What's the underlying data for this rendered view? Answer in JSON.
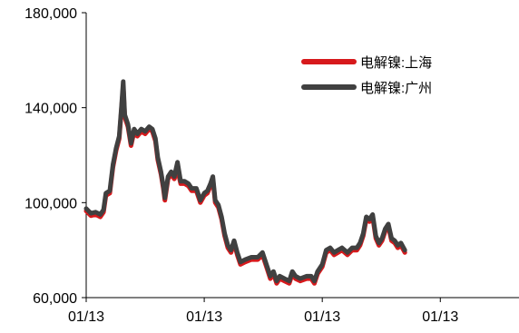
{
  "chart_data": {
    "type": "line",
    "xlabel": "",
    "ylabel": "",
    "ylim": [
      60000,
      180000
    ],
    "yticks": [
      60000,
      100000,
      140000,
      180000
    ],
    "ytick_labels": [
      "60,000",
      "100,000",
      "140,000",
      "180,000"
    ],
    "xlim": [
      0,
      5.5
    ],
    "xtick_positions": [
      0,
      1.5,
      3,
      4.5
    ],
    "xtick_labels": [
      "01/13",
      "01/13",
      "01/13",
      "01/13"
    ],
    "grid": false,
    "legend_position": "top-right",
    "series": [
      {
        "name": "电解镍:上海",
        "color": "#d7191c",
        "points": [
          [
            0.0,
            96500
          ],
          [
            0.06,
            94500
          ],
          [
            0.12,
            95000
          ],
          [
            0.18,
            94000
          ],
          [
            0.22,
            96000
          ],
          [
            0.25,
            103000
          ],
          [
            0.3,
            104000
          ],
          [
            0.34,
            115000
          ],
          [
            0.38,
            122000
          ],
          [
            0.42,
            127000
          ],
          [
            0.45,
            140000
          ],
          [
            0.47,
            149000
          ],
          [
            0.49,
            136000
          ],
          [
            0.53,
            132000
          ],
          [
            0.57,
            124000
          ],
          [
            0.61,
            130000
          ],
          [
            0.65,
            128000
          ],
          [
            0.7,
            130000
          ],
          [
            0.75,
            129000
          ],
          [
            0.8,
            131000
          ],
          [
            0.84,
            130000
          ],
          [
            0.88,
            126000
          ],
          [
            0.91,
            118000
          ],
          [
            0.95,
            112000
          ],
          [
            0.98,
            106000
          ],
          [
            1.0,
            101000
          ],
          [
            1.04,
            110000
          ],
          [
            1.08,
            112000
          ],
          [
            1.12,
            110000
          ],
          [
            1.16,
            114000
          ],
          [
            1.2,
            108000
          ],
          [
            1.25,
            108000
          ],
          [
            1.3,
            107000
          ],
          [
            1.34,
            105000
          ],
          [
            1.4,
            105000
          ],
          [
            1.45,
            100000
          ],
          [
            1.5,
            103000
          ],
          [
            1.54,
            104000
          ],
          [
            1.58,
            107000
          ],
          [
            1.61,
            110000
          ],
          [
            1.64,
            100000
          ],
          [
            1.68,
            98000
          ],
          [
            1.72,
            93000
          ],
          [
            1.76,
            86000
          ],
          [
            1.8,
            81000
          ],
          [
            1.84,
            79000
          ],
          [
            1.88,
            83000
          ],
          [
            1.92,
            78000
          ],
          [
            1.96,
            74000
          ],
          [
            2.02,
            75000
          ],
          [
            2.1,
            76000
          ],
          [
            2.18,
            76000
          ],
          [
            2.24,
            78000
          ],
          [
            2.3,
            72000
          ],
          [
            2.34,
            68000
          ],
          [
            2.38,
            70000
          ],
          [
            2.42,
            66000
          ],
          [
            2.46,
            68000
          ],
          [
            2.52,
            67000
          ],
          [
            2.58,
            66000
          ],
          [
            2.62,
            70000
          ],
          [
            2.66,
            68000
          ],
          [
            2.72,
            67000
          ],
          [
            2.8,
            68000
          ],
          [
            2.86,
            68000
          ],
          [
            2.9,
            66000
          ],
          [
            2.94,
            70000
          ],
          [
            3.0,
            73000
          ],
          [
            3.05,
            79000
          ],
          [
            3.1,
            80000
          ],
          [
            3.15,
            78000
          ],
          [
            3.2,
            79000
          ],
          [
            3.25,
            80000
          ],
          [
            3.32,
            78000
          ],
          [
            3.38,
            80000
          ],
          [
            3.44,
            80000
          ],
          [
            3.48,
            82000
          ],
          [
            3.52,
            86000
          ],
          [
            3.56,
            93000
          ],
          [
            3.6,
            92000
          ],
          [
            3.64,
            94000
          ],
          [
            3.68,
            85000
          ],
          [
            3.72,
            82000
          ],
          [
            3.76,
            84000
          ],
          [
            3.8,
            88000
          ],
          [
            3.84,
            90000
          ],
          [
            3.88,
            84000
          ],
          [
            3.92,
            83000
          ],
          [
            3.96,
            81000
          ],
          [
            4.0,
            82000
          ],
          [
            4.05,
            79000
          ]
        ]
      },
      {
        "name": "电解镍:广州",
        "color": "#404040",
        "points": [
          [
            0.0,
            97500
          ],
          [
            0.06,
            95500
          ],
          [
            0.12,
            96000
          ],
          [
            0.18,
            95000
          ],
          [
            0.22,
            97000
          ],
          [
            0.25,
            104000
          ],
          [
            0.3,
            105000
          ],
          [
            0.34,
            116000
          ],
          [
            0.38,
            123000
          ],
          [
            0.42,
            128000
          ],
          [
            0.45,
            141000
          ],
          [
            0.47,
            151000
          ],
          [
            0.49,
            137000
          ],
          [
            0.53,
            133000
          ],
          [
            0.57,
            125000
          ],
          [
            0.61,
            131000
          ],
          [
            0.65,
            129000
          ],
          [
            0.7,
            131000
          ],
          [
            0.75,
            130000
          ],
          [
            0.8,
            132000
          ],
          [
            0.84,
            131000
          ],
          [
            0.88,
            127000
          ],
          [
            0.91,
            119000
          ],
          [
            0.95,
            113000
          ],
          [
            0.98,
            107000
          ],
          [
            1.0,
            102000
          ],
          [
            1.04,
            111000
          ],
          [
            1.08,
            113000
          ],
          [
            1.12,
            111000
          ],
          [
            1.16,
            117000
          ],
          [
            1.2,
            109000
          ],
          [
            1.25,
            109000
          ],
          [
            1.3,
            108000
          ],
          [
            1.34,
            106000
          ],
          [
            1.4,
            106000
          ],
          [
            1.45,
            101000
          ],
          [
            1.5,
            104000
          ],
          [
            1.54,
            105000
          ],
          [
            1.58,
            108000
          ],
          [
            1.61,
            111000
          ],
          [
            1.64,
            101000
          ],
          [
            1.68,
            99000
          ],
          [
            1.72,
            94000
          ],
          [
            1.76,
            87000
          ],
          [
            1.8,
            82000
          ],
          [
            1.84,
            80000
          ],
          [
            1.88,
            84000
          ],
          [
            1.92,
            79000
          ],
          [
            1.96,
            75000
          ],
          [
            2.02,
            76000
          ],
          [
            2.1,
            77000
          ],
          [
            2.18,
            77000
          ],
          [
            2.24,
            79000
          ],
          [
            2.3,
            73000
          ],
          [
            2.34,
            69000
          ],
          [
            2.38,
            71000
          ],
          [
            2.42,
            67000
          ],
          [
            2.46,
            69000
          ],
          [
            2.52,
            68000
          ],
          [
            2.58,
            67000
          ],
          [
            2.62,
            71000
          ],
          [
            2.66,
            69000
          ],
          [
            2.72,
            68000
          ],
          [
            2.8,
            69000
          ],
          [
            2.86,
            69000
          ],
          [
            2.9,
            67000
          ],
          [
            2.94,
            71000
          ],
          [
            3.0,
            74000
          ],
          [
            3.05,
            80000
          ],
          [
            3.1,
            81000
          ],
          [
            3.15,
            79000
          ],
          [
            3.2,
            80000
          ],
          [
            3.25,
            81000
          ],
          [
            3.32,
            79000
          ],
          [
            3.38,
            81000
          ],
          [
            3.44,
            81000
          ],
          [
            3.48,
            83000
          ],
          [
            3.52,
            87000
          ],
          [
            3.56,
            94000
          ],
          [
            3.6,
            93000
          ],
          [
            3.64,
            95000
          ],
          [
            3.68,
            86000
          ],
          [
            3.72,
            83000
          ],
          [
            3.76,
            85000
          ],
          [
            3.8,
            89000
          ],
          [
            3.84,
            91000
          ],
          [
            3.88,
            85000
          ],
          [
            3.92,
            84000
          ],
          [
            3.96,
            82000
          ],
          [
            4.0,
            83000
          ],
          [
            4.05,
            80000
          ]
        ]
      }
    ]
  }
}
